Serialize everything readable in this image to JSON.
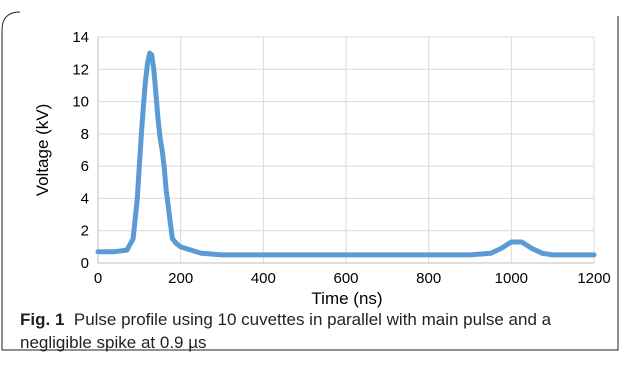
{
  "caption": {
    "label": "Fig. 1",
    "text": "Pulse profile using 10 cuvettes in parallel with main pulse and a negligible spike at 0.9 µs"
  },
  "chart_data": {
    "type": "line",
    "xlabel": "Time (ns)",
    "ylabel": "Voltage (kV)",
    "xlim": [
      0,
      1200
    ],
    "ylim": [
      0,
      14
    ],
    "xticks": [
      "0",
      "200",
      "400",
      "600",
      "800",
      "1000",
      "1200"
    ],
    "yticks": [
      "0",
      "2",
      "4",
      "6",
      "8",
      "10",
      "12",
      "14"
    ],
    "grid": true,
    "series_color": "#5b9bd5",
    "series": [
      {
        "x": [
          0,
          40,
          70,
          85,
          95,
          100,
          105,
          110,
          115,
          120,
          125,
          130,
          135,
          140,
          145,
          150,
          155,
          160,
          165,
          170,
          175,
          180,
          190,
          200,
          225,
          250,
          300,
          400,
          500,
          600,
          700,
          800,
          900,
          950,
          975,
          1000,
          1025,
          1050,
          1075,
          1100,
          1150,
          1200
        ],
        "y": [
          0.7,
          0.7,
          0.8,
          1.5,
          4.0,
          6.0,
          8.0,
          9.8,
          11.3,
          12.4,
          13.0,
          12.9,
          12.0,
          10.5,
          9.0,
          7.8,
          7.0,
          6.0,
          4.5,
          3.5,
          2.5,
          1.5,
          1.2,
          1.0,
          0.8,
          0.6,
          0.5,
          0.5,
          0.5,
          0.5,
          0.5,
          0.5,
          0.5,
          0.6,
          0.9,
          1.3,
          1.3,
          0.9,
          0.6,
          0.5,
          0.5,
          0.5
        ]
      }
    ]
  }
}
